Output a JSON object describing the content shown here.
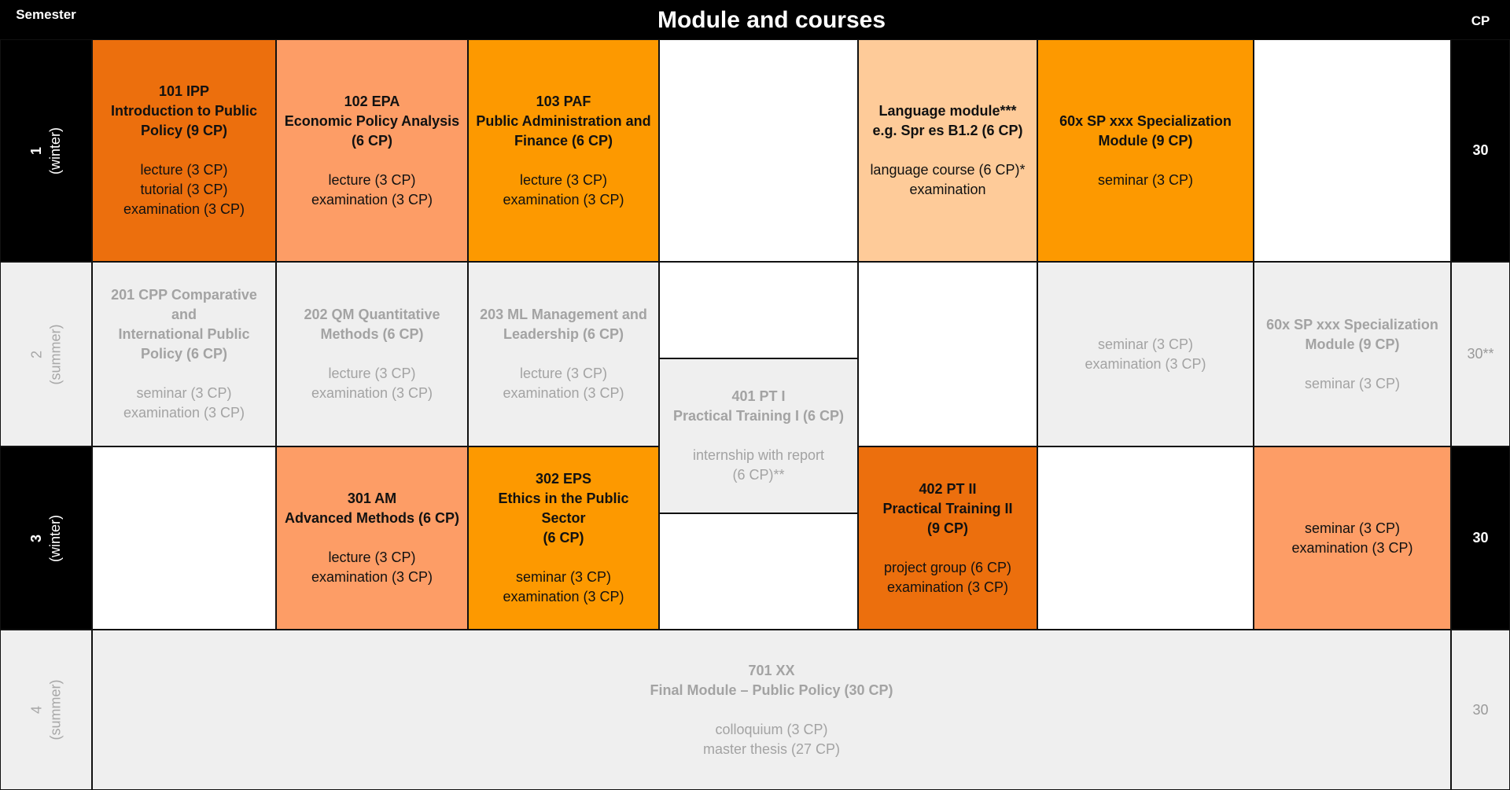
{
  "header": {
    "semester": "Semester",
    "title": "Module and courses",
    "cp": "CP"
  },
  "semesters": [
    {
      "num": "1",
      "season": "(winter)",
      "cp": "30"
    },
    {
      "num": "2",
      "season": "(summer)",
      "cp": "30**"
    },
    {
      "num": "3",
      "season": "(winter)",
      "cp": "30"
    },
    {
      "num": "4",
      "season": "(summer)",
      "cp": "30"
    }
  ],
  "modules": {
    "m101": {
      "title1": "101 IPP",
      "title2": "Introduction to Public",
      "title3": "Policy (9 CP)",
      "line1": "lecture  (3 CP)",
      "line2": "tutorial  (3 CP)",
      "line3": "examination  (3 CP)"
    },
    "m102": {
      "title1": "102 EPA",
      "title2": "Economic Policy Analysis",
      "title3": "(6 CP)",
      "line1": "lecture  (3 CP)",
      "line2": "examination  (3 CP)"
    },
    "m103": {
      "title1": "103 PAF",
      "title2": "Public Administration and",
      "title3": "Finance (6 CP)",
      "line1": "lecture  (3 CP)",
      "line2": "examination  (3 CP)"
    },
    "lang": {
      "title1": "Language module***",
      "title2": "e.g. Spr es B1.2 (6 CP)",
      "line1": "language course  (6 CP)*",
      "line2": "examination"
    },
    "sp1": {
      "title1": "60x SP xxx Specialization",
      "title2": "Module (9 CP)",
      "line1": "seminar  (3 CP)"
    },
    "m201": {
      "title1": "201 CPP Comparative and",
      "title2": "International Public",
      "title3": "Policy (6 CP)",
      "line1": "seminar  (3 CP)",
      "line2": "examination  (3 CP)"
    },
    "m202": {
      "title1": "202 QM Quantitative",
      "title2": "Methods (6 CP)",
      "line1": "lecture  (3 CP)",
      "line2": "examination  (3 CP)"
    },
    "m203": {
      "title1": "203 ML Management and",
      "title2": "Leadership (6 CP)",
      "line1": "lecture  (3 CP)",
      "line2": "examination  (3 CP)"
    },
    "sp2a": {
      "line1": "seminar  (3 CP)",
      "line2": "examination  (3 CP)"
    },
    "sp2b": {
      "title1": "60x SP xxx Specialization",
      "title2": "Module (9 CP)",
      "line1": "seminar  (3 CP)"
    },
    "m401": {
      "title1": "401 PT I",
      "title2": "Practical Training I (6 CP)",
      "line1": "internship with report",
      "line2": "(6 CP)**"
    },
    "m301": {
      "title1": "301 AM",
      "title2": "Advanced Methods (6 CP)",
      "line1": "lecture  (3 CP)",
      "line2": "examination  (3 CP)"
    },
    "m302": {
      "title1": "302 EPS",
      "title2": "Ethics in the Public Sector",
      "title3": "(6 CP)",
      "line1": "seminar  (3 CP)",
      "line2": "examination  (3 CP)"
    },
    "m402": {
      "title1": "402 PT II",
      "title2": "Practical Training II",
      "title3": "(9 CP)",
      "line1": "project group  (6 CP)",
      "line2": "examination  (3 CP)"
    },
    "sp3": {
      "line1": "seminar  (3 CP)",
      "line2": "examination  (3 CP)"
    },
    "m701": {
      "title1": "701 XX",
      "title2": "Final Module – Public Policy (30 CP)",
      "line1": "colloquium  (3 CP)",
      "line2": "master thesis  (27 CP)"
    }
  },
  "colors": {
    "dark_orange": "#ec6f0d",
    "salmon": "#fd9d66",
    "orange": "#fd9900",
    "peach": "#fecb99",
    "grey": "#efefef",
    "black": "#000000"
  }
}
